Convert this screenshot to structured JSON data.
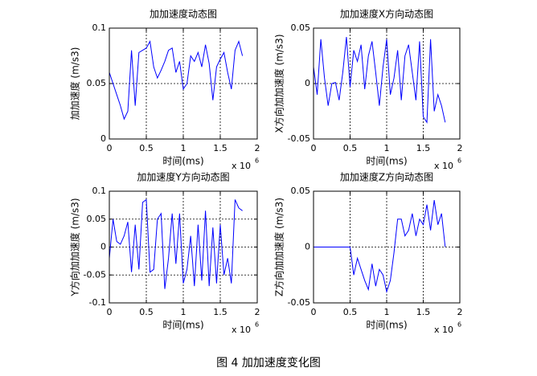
{
  "caption": "图 4  加加速度变化图",
  "chart_data": [
    {
      "type": "line",
      "title": "加加速度动态图",
      "xlabel": "时间(ms)",
      "ylabel": "加加速度 (m/s3)",
      "x_multiplier": "x 10",
      "x_exponent": "6",
      "x": [
        0,
        0.05,
        0.1,
        0.15,
        0.2,
        0.25,
        0.3,
        0.35,
        0.4,
        0.45,
        0.5,
        0.55,
        0.6,
        0.65,
        0.7,
        0.75,
        0.8,
        0.85,
        0.9,
        0.95,
        1.0,
        1.05,
        1.1,
        1.15,
        1.2,
        1.25,
        1.3,
        1.35,
        1.4,
        1.45,
        1.5,
        1.55,
        1.6,
        1.65,
        1.7,
        1.75,
        1.8
      ],
      "values": [
        0.06,
        0.05,
        0.04,
        0.03,
        0.018,
        0.025,
        0.08,
        0.03,
        0.078,
        0.08,
        0.082,
        0.088,
        0.065,
        0.055,
        0.062,
        0.07,
        0.08,
        0.082,
        0.06,
        0.07,
        0.045,
        0.05,
        0.075,
        0.07,
        0.078,
        0.065,
        0.085,
        0.068,
        0.035,
        0.065,
        0.072,
        0.078,
        0.06,
        0.045,
        0.08,
        0.088,
        0.075
      ],
      "color": "#0000ff",
      "xlim": [
        0,
        2
      ],
      "xticks": [
        0,
        0.5,
        1,
        1.5,
        2
      ],
      "ylim": [
        0,
        0.1
      ],
      "yticks": [
        0,
        0.05,
        0.1
      ],
      "grid": true
    },
    {
      "type": "line",
      "title": "加加速度X方向动态图",
      "xlabel": "时间(ms)",
      "ylabel": "X方向加加速度 (m/s3)",
      "x_multiplier": "x 10",
      "x_exponent": "6",
      "x": [
        0,
        0.05,
        0.1,
        0.15,
        0.2,
        0.25,
        0.3,
        0.35,
        0.4,
        0.45,
        0.5,
        0.55,
        0.6,
        0.65,
        0.7,
        0.75,
        0.8,
        0.85,
        0.9,
        0.95,
        1.0,
        1.05,
        1.1,
        1.15,
        1.2,
        1.25,
        1.3,
        1.35,
        1.4,
        1.45,
        1.5,
        1.55,
        1.6,
        1.65,
        1.7,
        1.75,
        1.8
      ],
      "values": [
        0.015,
        -0.01,
        0.04,
        0.005,
        -0.02,
        0,
        0.001,
        -0.015,
        0.01,
        0.042,
        -0.003,
        0.03,
        0.02,
        0.035,
        -0.005,
        0.025,
        0.038,
        0.01,
        -0.02,
        0.015,
        0.04,
        -0.01,
        0.005,
        0.03,
        -0.015,
        0.025,
        0.035,
        0.01,
        -0.015,
        0.038,
        -0.03,
        -0.035,
        0.04,
        -0.025,
        -0.01,
        -0.02,
        -0.035
      ],
      "color": "#0000ff",
      "xlim": [
        0,
        2
      ],
      "xticks": [
        0,
        0.5,
        1,
        1.5,
        2
      ],
      "ylim": [
        -0.05,
        0.05
      ],
      "yticks": [
        -0.05,
        0,
        0.05
      ],
      "grid": true
    },
    {
      "type": "line",
      "title": "加加速度Y方向动态图",
      "xlabel": "时间(ms)",
      "ylabel": "Y方向加加速度 (m/s3)",
      "x_multiplier": "x 10",
      "x_exponent": "6",
      "x": [
        0,
        0.05,
        0.1,
        0.15,
        0.2,
        0.25,
        0.3,
        0.35,
        0.4,
        0.45,
        0.5,
        0.55,
        0.6,
        0.65,
        0.7,
        0.75,
        0.8,
        0.85,
        0.9,
        0.95,
        1.0,
        1.05,
        1.1,
        1.15,
        1.2,
        1.25,
        1.3,
        1.35,
        1.4,
        1.45,
        1.5,
        1.55,
        1.6,
        1.65,
        1.7,
        1.75,
        1.8
      ],
      "values": [
        -0.02,
        0.05,
        0.01,
        0.005,
        0.02,
        0.045,
        -0.045,
        0.04,
        -0.04,
        0.08,
        0.085,
        -0.045,
        -0.04,
        0.05,
        0.06,
        -0.075,
        -0.02,
        0.06,
        -0.03,
        0.06,
        -0.065,
        -0.04,
        0.02,
        -0.07,
        0.04,
        -0.06,
        0.065,
        -0.07,
        0.035,
        -0.065,
        0.04,
        -0.05,
        -0.02,
        -0.065,
        0.085,
        0.07,
        0.065
      ],
      "color": "#0000ff",
      "xlim": [
        0,
        2
      ],
      "xticks": [
        0,
        0.5,
        1,
        1.5,
        2
      ],
      "ylim": [
        -0.1,
        0.1
      ],
      "yticks": [
        -0.1,
        -0.05,
        0,
        0.05,
        0.1
      ],
      "grid": true
    },
    {
      "type": "line",
      "title": "加加速度Z方向动态图",
      "xlabel": "时间(ms)",
      "ylabel": "Z方向加加速度 (m/s3)",
      "x_multiplier": "x 10",
      "x_exponent": "6",
      "x": [
        0,
        0.05,
        0.1,
        0.15,
        0.2,
        0.25,
        0.3,
        0.35,
        0.4,
        0.45,
        0.5,
        0.55,
        0.6,
        0.65,
        0.7,
        0.75,
        0.8,
        0.85,
        0.9,
        0.95,
        1.0,
        1.05,
        1.1,
        1.15,
        1.2,
        1.25,
        1.3,
        1.35,
        1.4,
        1.45,
        1.5,
        1.55,
        1.6,
        1.65,
        1.7,
        1.75,
        1.8
      ],
      "values": [
        0,
        0,
        0,
        0,
        0,
        0,
        0,
        0,
        0,
        0,
        0,
        -0.025,
        -0.01,
        -0.02,
        -0.03,
        -0.038,
        -0.015,
        -0.035,
        -0.02,
        -0.025,
        -0.04,
        -0.03,
        -0.005,
        0.025,
        0.025,
        0.01,
        0.015,
        0.03,
        0.01,
        0.025,
        0.02,
        0.038,
        0.015,
        0.042,
        0.02,
        0.03,
        0
      ],
      "color": "#0000ff",
      "xlim": [
        0,
        2
      ],
      "xticks": [
        0,
        0.5,
        1,
        1.5,
        2
      ],
      "ylim": [
        -0.05,
        0.05
      ],
      "yticks": [
        -0.05,
        0,
        0.05
      ],
      "grid": true
    }
  ]
}
